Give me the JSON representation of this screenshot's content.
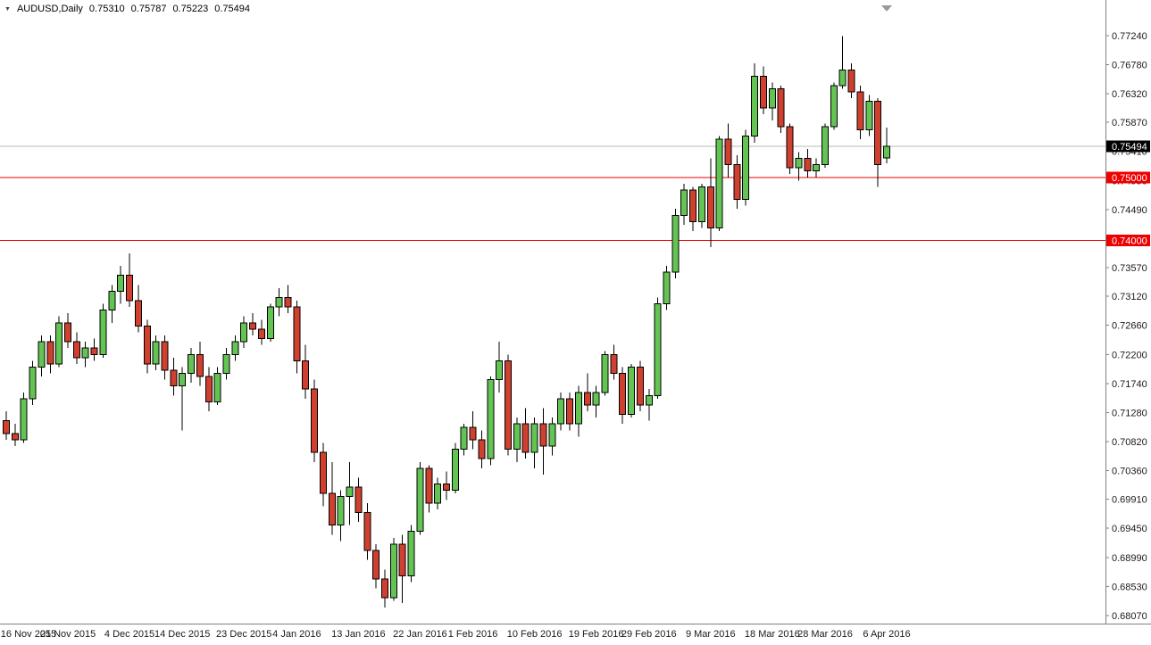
{
  "header": {
    "expander_icon": "▼",
    "symbol_period": "AUDUSD,Daily",
    "open": "0.75310",
    "high": "0.75787",
    "low": "0.75223",
    "close": "0.75494"
  },
  "chart_data": {
    "type": "candlestick",
    "title": "AUDUSD,Daily",
    "symbol": "AUDUSD",
    "timeframe": "Daily",
    "values_order": "open,high,low,close",
    "grid": "off",
    "legend": "none",
    "price_axis_side": "right",
    "y_range": [
      0.6807,
      0.7724
    ],
    "current_price": 0.75494,
    "current_price_label": "0.75494",
    "colors": {
      "background": "#ffffff",
      "up": "#63c453",
      "down": "#d0402e",
      "outline": "#000000",
      "bid_line": "#b8b8b8",
      "level_line": "#ee0000",
      "current_tag_bg": "#000000",
      "tag_text": "#ffffff",
      "axis_text": "#1a1a1a",
      "separator": "#808080",
      "shift_marker": "#9a9a9a"
    },
    "horizontal_lines": [
      {
        "price": 0.75,
        "label": "0.75000",
        "color": "#ee0000"
      },
      {
        "price": 0.74,
        "label": "0.74000",
        "color": "#ee0000"
      }
    ],
    "y_axis_ticks": [
      "0.77240",
      "0.76780",
      "0.76320",
      "0.75870",
      "0.75410",
      "0.74950",
      "0.74490",
      "0.74030",
      "0.73570",
      "0.73120",
      "0.72660",
      "0.72200",
      "0.71740",
      "0.71280",
      "0.70820",
      "0.70360",
      "0.69910",
      "0.69450",
      "0.68990",
      "0.68530",
      "0.68070"
    ],
    "x_axis_labels": [
      {
        "text": "16 Nov 2015",
        "i": 0
      },
      {
        "text": "25 Nov 2015",
        "i": 7
      },
      {
        "text": "4 Dec 2015",
        "i": 14
      },
      {
        "text": "14 Dec 2015",
        "i": 20
      },
      {
        "text": "23 Dec 2015",
        "i": 27
      },
      {
        "text": "4 Jan 2016",
        "i": 33
      },
      {
        "text": "13 Jan 2016",
        "i": 40
      },
      {
        "text": "22 Jan 2016",
        "i": 47
      },
      {
        "text": "1 Feb 2016",
        "i": 53
      },
      {
        "text": "10 Feb 2016",
        "i": 60
      },
      {
        "text": "19 Feb 2016",
        "i": 67
      },
      {
        "text": "29 Feb 2016",
        "i": 73
      },
      {
        "text": "9 Mar 2016",
        "i": 80
      },
      {
        "text": "18 Mar 2016",
        "i": 87
      },
      {
        "text": "28 Mar 2016",
        "i": 93
      },
      {
        "text": "6 Apr 2016",
        "i": 100
      }
    ],
    "candles": [
      [
        0.7115,
        0.713,
        0.7085,
        0.7095
      ],
      [
        0.7095,
        0.711,
        0.7075,
        0.7085
      ],
      [
        0.7085,
        0.716,
        0.708,
        0.715
      ],
      [
        0.715,
        0.721,
        0.714,
        0.72
      ],
      [
        0.72,
        0.725,
        0.7185,
        0.724
      ],
      [
        0.724,
        0.725,
        0.719,
        0.7205
      ],
      [
        0.7205,
        0.728,
        0.72,
        0.727
      ],
      [
        0.727,
        0.7285,
        0.723,
        0.724
      ],
      [
        0.724,
        0.7255,
        0.7205,
        0.7215
      ],
      [
        0.7215,
        0.724,
        0.72,
        0.723
      ],
      [
        0.723,
        0.7245,
        0.721,
        0.722
      ],
      [
        0.722,
        0.73,
        0.7215,
        0.729
      ],
      [
        0.729,
        0.733,
        0.727,
        0.732
      ],
      [
        0.732,
        0.736,
        0.73,
        0.7345
      ],
      [
        0.7345,
        0.738,
        0.7295,
        0.7305
      ],
      [
        0.7305,
        0.733,
        0.7255,
        0.7265
      ],
      [
        0.7265,
        0.7275,
        0.719,
        0.7205
      ],
      [
        0.7205,
        0.725,
        0.7195,
        0.724
      ],
      [
        0.724,
        0.725,
        0.718,
        0.7195
      ],
      [
        0.7195,
        0.7215,
        0.7155,
        0.717
      ],
      [
        0.717,
        0.72,
        0.71,
        0.719
      ],
      [
        0.719,
        0.723,
        0.7175,
        0.722
      ],
      [
        0.722,
        0.724,
        0.717,
        0.7185
      ],
      [
        0.7185,
        0.72,
        0.713,
        0.7145
      ],
      [
        0.7145,
        0.72,
        0.714,
        0.719
      ],
      [
        0.719,
        0.723,
        0.718,
        0.722
      ],
      [
        0.722,
        0.725,
        0.721,
        0.724
      ],
      [
        0.724,
        0.728,
        0.723,
        0.727
      ],
      [
        0.727,
        0.7285,
        0.725,
        0.726
      ],
      [
        0.726,
        0.7275,
        0.7235,
        0.7245
      ],
      [
        0.7245,
        0.73,
        0.724,
        0.7295
      ],
      [
        0.7295,
        0.7325,
        0.728,
        0.731
      ],
      [
        0.731,
        0.733,
        0.7285,
        0.7295
      ],
      [
        0.7295,
        0.7305,
        0.719,
        0.721
      ],
      [
        0.721,
        0.7235,
        0.715,
        0.7165
      ],
      [
        0.7165,
        0.718,
        0.705,
        0.7065
      ],
      [
        0.7065,
        0.708,
        0.698,
        0.7
      ],
      [
        0.7,
        0.705,
        0.6935,
        0.695
      ],
      [
        0.695,
        0.7005,
        0.6925,
        0.6995
      ],
      [
        0.6995,
        0.705,
        0.695,
        0.701
      ],
      [
        0.701,
        0.7025,
        0.6955,
        0.697
      ],
      [
        0.697,
        0.6985,
        0.6895,
        0.691
      ],
      [
        0.691,
        0.692,
        0.685,
        0.6865
      ],
      [
        0.6865,
        0.688,
        0.682,
        0.6835
      ],
      [
        0.6835,
        0.693,
        0.683,
        0.692
      ],
      [
        0.692,
        0.6935,
        0.6827,
        0.687
      ],
      [
        0.687,
        0.695,
        0.686,
        0.694
      ],
      [
        0.694,
        0.705,
        0.6935,
        0.704
      ],
      [
        0.704,
        0.7045,
        0.697,
        0.6985
      ],
      [
        0.6985,
        0.7025,
        0.6975,
        0.7015
      ],
      [
        0.7015,
        0.7035,
        0.699,
        0.7005
      ],
      [
        0.7005,
        0.708,
        0.7,
        0.707
      ],
      [
        0.707,
        0.711,
        0.706,
        0.7105
      ],
      [
        0.7105,
        0.713,
        0.707,
        0.7085
      ],
      [
        0.7085,
        0.71,
        0.704,
        0.7055
      ],
      [
        0.7055,
        0.7185,
        0.7045,
        0.718
      ],
      [
        0.718,
        0.724,
        0.716,
        0.721
      ],
      [
        0.721,
        0.722,
        0.706,
        0.707
      ],
      [
        0.707,
        0.712,
        0.705,
        0.711
      ],
      [
        0.711,
        0.7135,
        0.7055,
        0.7065
      ],
      [
        0.7065,
        0.712,
        0.704,
        0.711
      ],
      [
        0.711,
        0.7135,
        0.703,
        0.7075
      ],
      [
        0.7075,
        0.712,
        0.706,
        0.711
      ],
      [
        0.711,
        0.716,
        0.71,
        0.715
      ],
      [
        0.715,
        0.716,
        0.71,
        0.711
      ],
      [
        0.711,
        0.717,
        0.709,
        0.716
      ],
      [
        0.716,
        0.719,
        0.713,
        0.714
      ],
      [
        0.714,
        0.717,
        0.712,
        0.716
      ],
      [
        0.716,
        0.7225,
        0.7155,
        0.722
      ],
      [
        0.722,
        0.7235,
        0.718,
        0.719
      ],
      [
        0.719,
        0.72,
        0.711,
        0.7125
      ],
      [
        0.7125,
        0.7205,
        0.712,
        0.72
      ],
      [
        0.72,
        0.721,
        0.713,
        0.714
      ],
      [
        0.714,
        0.7165,
        0.7115,
        0.7155
      ],
      [
        0.7155,
        0.731,
        0.715,
        0.73
      ],
      [
        0.73,
        0.736,
        0.729,
        0.735
      ],
      [
        0.735,
        0.745,
        0.734,
        0.744
      ],
      [
        0.744,
        0.749,
        0.7425,
        0.748
      ],
      [
        0.748,
        0.7485,
        0.7415,
        0.743
      ],
      [
        0.743,
        0.749,
        0.742,
        0.7485
      ],
      [
        0.7485,
        0.753,
        0.739,
        0.742
      ],
      [
        0.742,
        0.7565,
        0.7415,
        0.756
      ],
      [
        0.756,
        0.7585,
        0.75,
        0.752
      ],
      [
        0.752,
        0.7535,
        0.745,
        0.7465
      ],
      [
        0.7465,
        0.7575,
        0.7455,
        0.7565
      ],
      [
        0.7565,
        0.768,
        0.7555,
        0.766
      ],
      [
        0.766,
        0.7675,
        0.76,
        0.761
      ],
      [
        0.761,
        0.765,
        0.759,
        0.764
      ],
      [
        0.764,
        0.7645,
        0.757,
        0.758
      ],
      [
        0.758,
        0.7585,
        0.7505,
        0.7515
      ],
      [
        0.7515,
        0.754,
        0.7495,
        0.753
      ],
      [
        0.753,
        0.7545,
        0.75,
        0.751
      ],
      [
        0.751,
        0.753,
        0.75,
        0.752
      ],
      [
        0.752,
        0.7585,
        0.7515,
        0.758
      ],
      [
        0.758,
        0.765,
        0.7575,
        0.7645
      ],
      [
        0.7645,
        0.7723,
        0.764,
        0.767
      ],
      [
        0.767,
        0.768,
        0.7625,
        0.7635
      ],
      [
        0.7635,
        0.7645,
        0.756,
        0.7575
      ],
      [
        0.7575,
        0.763,
        0.7565,
        0.762
      ],
      [
        0.762,
        0.7625,
        0.7485,
        0.752
      ],
      [
        0.7531,
        0.75787,
        0.75223,
        0.75494
      ]
    ]
  }
}
